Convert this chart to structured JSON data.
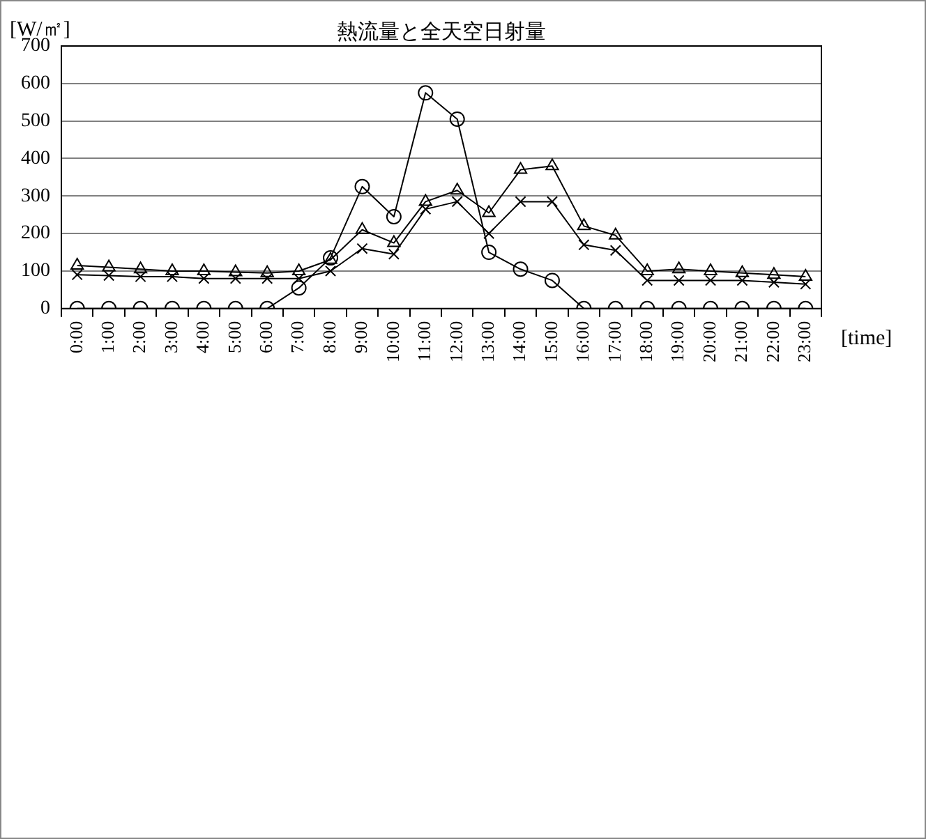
{
  "chart_data": {
    "type": "line",
    "title": "熱流量と全天空日射量",
    "ylabel": "[W/㎡]",
    "xlabel": "[time]",
    "categories": [
      "0:00",
      "1:00",
      "2:00",
      "3:00",
      "4:00",
      "5:00",
      "6:00",
      "7:00",
      "8:00",
      "9:00",
      "10:00",
      "11:00",
      "12:00",
      "13:00",
      "14:00",
      "15:00",
      "16:00",
      "17:00",
      "18:00",
      "19:00",
      "20:00",
      "21:00",
      "22:00",
      "23:00"
    ],
    "series": [
      {
        "color": "#000000",
        "marker": "circle",
        "values": [
          0,
          0,
          0,
          0,
          0,
          0,
          0,
          55,
          135,
          325,
          245,
          575,
          505,
          150,
          105,
          75,
          0,
          0,
          0,
          0,
          0,
          0,
          0,
          0
        ]
      },
      {
        "color": "#000000",
        "marker": "triangle",
        "values": [
          115,
          110,
          105,
          100,
          100,
          97,
          95,
          100,
          130,
          210,
          175,
          285,
          315,
          255,
          370,
          380,
          220,
          195,
          100,
          105,
          100,
          95,
          90,
          85
        ]
      },
      {
        "color": "#000000",
        "marker": "cross",
        "values": [
          90,
          88,
          85,
          85,
          80,
          80,
          80,
          80,
          100,
          160,
          145,
          265,
          285,
          200,
          285,
          285,
          170,
          155,
          75,
          75,
          75,
          75,
          70,
          65
        ]
      }
    ],
    "ylim": [
      0,
      700
    ],
    "yticks": [
      0,
      100,
      200,
      300,
      400,
      500,
      600,
      700
    ],
    "grid": "y",
    "legend": false
  }
}
